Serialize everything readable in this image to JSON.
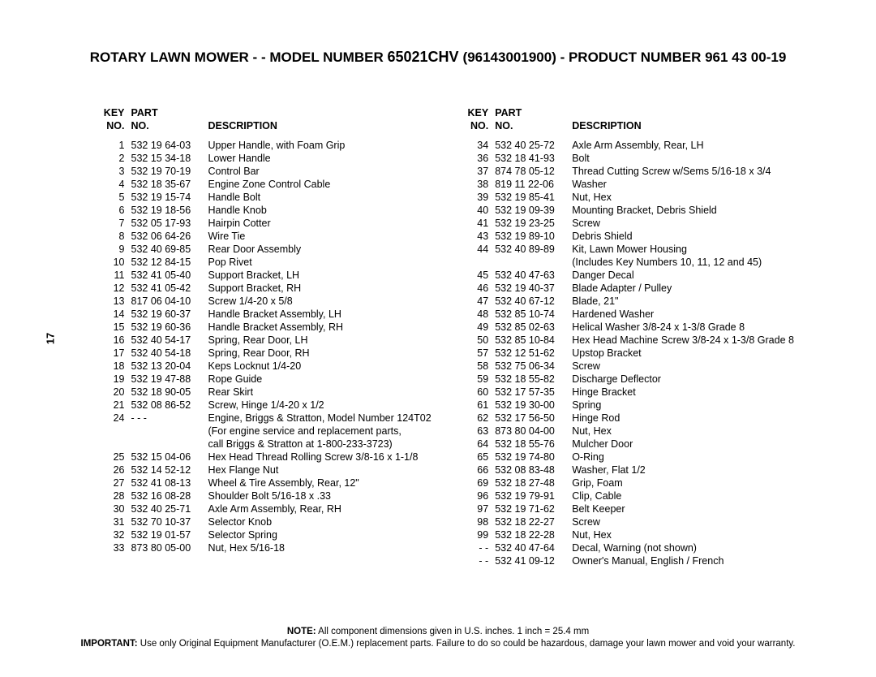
{
  "page_number": "17",
  "title_prefix": "ROTARY LAWN MOWER - - MODEL NUMBER ",
  "title_model": "65021CHV ",
  "title_suffix": " (96143001900) - PRODUCT NUMBER 961 43 00-19",
  "headers": {
    "key_l1": "KEY",
    "key_l2": "NO.",
    "part_l1": "PART",
    "part_l2": "NO.",
    "desc_l1": "",
    "desc_l2": "DESCRIPTION"
  },
  "left_rows": [
    {
      "key": "1",
      "part": "532 19 64-03",
      "desc": "Upper Handle, with Foam Grip"
    },
    {
      "key": "2",
      "part": "532 15 34-18",
      "desc": "Lower Handle"
    },
    {
      "key": "3",
      "part": "532 19 70-19",
      "desc": "Control Bar"
    },
    {
      "key": "4",
      "part": "532 18 35-67",
      "desc": "Engine Zone Control Cable"
    },
    {
      "key": "5",
      "part": "532 19 15-74",
      "desc": "Handle Bolt"
    },
    {
      "key": "6",
      "part": "532 19 18-56",
      "desc": "Handle Knob"
    },
    {
      "key": "7",
      "part": "532 05 17-93",
      "desc": "Hairpin Cotter"
    },
    {
      "key": "8",
      "part": "532 06 64-26",
      "desc": "Wire Tie"
    },
    {
      "key": "9",
      "part": "532 40 69-85",
      "desc": "Rear Door Assembly"
    },
    {
      "key": "10",
      "part": "532 12 84-15",
      "desc": "Pop Rivet"
    },
    {
      "key": "11",
      "part": "532 41 05-40",
      "desc": "Support Bracket, LH"
    },
    {
      "key": "12",
      "part": "532 41 05-42",
      "desc": "Support Bracket, RH"
    },
    {
      "key": "13",
      "part": "817 06 04-10",
      "desc": "Screw  1/4-20 x 5/8"
    },
    {
      "key": "14",
      "part": "532 19 60-37",
      "desc": "Handle Bracket Assembly, LH"
    },
    {
      "key": "15",
      "part": "532 19 60-36",
      "desc": "Handle Bracket Assembly, RH"
    },
    {
      "key": "16",
      "part": "532 40 54-17",
      "desc": "Spring, Rear Door, LH"
    },
    {
      "key": "17",
      "part": "532 40 54-18",
      "desc": "Spring, Rear Door, RH"
    },
    {
      "key": "18",
      "part": "532 13 20-04",
      "desc": "Keps Locknut  1/4-20"
    },
    {
      "key": "19",
      "part": "532 19 47-88",
      "desc": "Rope Guide"
    },
    {
      "key": "20",
      "part": "532 18 90-05",
      "desc": "Rear Skirt"
    },
    {
      "key": "21",
      "part": "532 08 86-52",
      "desc": "Screw, Hinge  1/4-20 x 1/2"
    },
    {
      "key": "24",
      "part": "- - -",
      "desc": "Engine, Briggs & Stratton, Model Number 124T02"
    },
    {
      "key": "",
      "part": "",
      "desc": "(For engine service and replacement parts,"
    },
    {
      "key": "",
      "part": "",
      "desc": "call Briggs & Stratton at 1-800-233-3723)"
    },
    {
      "key": "25",
      "part": "532 15 04-06",
      "desc": "Hex Head Thread Rolling Screw  3/8-16 x 1-1/8"
    },
    {
      "key": "26",
      "part": "532 14 52-12",
      "desc": "Hex Flange Nut"
    },
    {
      "key": "27",
      "part": "532 41 08-13",
      "desc": "Wheel & Tire Assembly, Rear, 12\""
    },
    {
      "key": "28",
      "part": "532 16 08-28",
      "desc": "Shoulder Bolt  5/16-18 x .33"
    },
    {
      "key": "30",
      "part": "532 40 25-71",
      "desc": "Axle Arm Assembly, Rear, RH"
    },
    {
      "key": "31",
      "part": "532 70 10-37",
      "desc": "Selector Knob"
    },
    {
      "key": "32",
      "part": "532 19 01-57",
      "desc": "Selector Spring"
    },
    {
      "key": "33",
      "part": "873 80 05-00",
      "desc": "Nut, Hex  5/16-18"
    }
  ],
  "right_rows": [
    {
      "key": "34",
      "part": "532 40 25-72",
      "desc": "Axle Arm Assembly, Rear, LH"
    },
    {
      "key": "36",
      "part": "532 18 41-93",
      "desc": "Bolt"
    },
    {
      "key": "37",
      "part": "874 78 05-12",
      "desc": "Thread Cutting Screw w/Sems  5/16-18 x 3/4"
    },
    {
      "key": "38",
      "part": "819 11 22-06",
      "desc": "Washer"
    },
    {
      "key": "39",
      "part": "532 19 85-41",
      "desc": "Nut, Hex"
    },
    {
      "key": "40",
      "part": "532 19 09-39",
      "desc": "Mounting Bracket, Debris Shield"
    },
    {
      "key": "41",
      "part": "532 19 23-25",
      "desc": "Screw"
    },
    {
      "key": "43",
      "part": "532 19 89-10",
      "desc": "Debris Shield"
    },
    {
      "key": "44",
      "part": "532 40 89-89",
      "desc": "Kit, Lawn Mower Housing"
    },
    {
      "key": "",
      "part": "",
      "desc": "(Includes Key Numbers 10, 11, 12 and 45)"
    },
    {
      "key": "45",
      "part": "532 40 47-63",
      "desc": "Danger Decal"
    },
    {
      "key": "46",
      "part": "532 19 40-37",
      "desc": "Blade Adapter / Pulley"
    },
    {
      "key": "47",
      "part": "532 40 67-12",
      "desc": "Blade, 21\""
    },
    {
      "key": "48",
      "part": "532 85 10-74",
      "desc": "Hardened Washer"
    },
    {
      "key": "49",
      "part": "532 85 02-63",
      "desc": "Helical Washer  3/8-24 x 1-3/8  Grade 8"
    },
    {
      "key": "50",
      "part": "532 85 10-84",
      "desc": "Hex Head Machine Screw  3/8-24 x 1-3/8  Grade 8"
    },
    {
      "key": "57",
      "part": "532 12 51-62",
      "desc": "Upstop Bracket"
    },
    {
      "key": "58",
      "part": "532 75 06-34",
      "desc": "Screw"
    },
    {
      "key": "59",
      "part": "532 18 55-82",
      "desc": "Discharge Deflector"
    },
    {
      "key": "60",
      "part": "532 17 57-35",
      "desc": "Hinge Bracket"
    },
    {
      "key": "61",
      "part": "532 19 30-00",
      "desc": "Spring"
    },
    {
      "key": "62",
      "part": "532 17 56-50",
      "desc": "Hinge Rod"
    },
    {
      "key": "63",
      "part": "873 80 04-00",
      "desc": "Nut, Hex"
    },
    {
      "key": "64",
      "part": "532 18 55-76",
      "desc": "Mulcher Door"
    },
    {
      "key": "65",
      "part": "532 19 74-80",
      "desc": "O-Ring"
    },
    {
      "key": "66",
      "part": "532 08 83-48",
      "desc": "Washer, Flat  1/2"
    },
    {
      "key": "69",
      "part": "532 18 27-48",
      "desc": "Grip, Foam"
    },
    {
      "key": "96",
      "part": "532 19 79-91",
      "desc": "Clip, Cable"
    },
    {
      "key": "97",
      "part": "532 19 71-62",
      "desc": "Belt Keeper"
    },
    {
      "key": "98",
      "part": "532 18 22-27",
      "desc": "Screw"
    },
    {
      "key": "99",
      "part": "532 18 22-28",
      "desc": "Nut, Hex"
    },
    {
      "key": "- -",
      "part": "532 40 47-64",
      "desc": "Decal, Warning (not shown)"
    },
    {
      "key": "- -",
      "part": "532 41 09-12",
      "desc": "Owner's Manual, English / French"
    }
  ],
  "note_label": "NOTE:",
  "note_text": " All component dimensions given in U.S. inches.  1 inch = 25.4 mm",
  "important_label": "IMPORTANT:",
  "important_text": " Use only Original Equipment Manufacturer (O.E.M.) replacement parts.  Failure to do so could be hazardous, damage your lawn mower and void your warranty.",
  "style": {
    "background": "#ffffff",
    "text_color": "#000000",
    "font_family": "Arial, Helvetica, sans-serif",
    "title_fontsize_pt": 17,
    "model_fontsize_pt": 18,
    "body_fontsize_pt": 12.5,
    "footer_fontsize_pt": 11.5,
    "line_height": 1.28
  }
}
